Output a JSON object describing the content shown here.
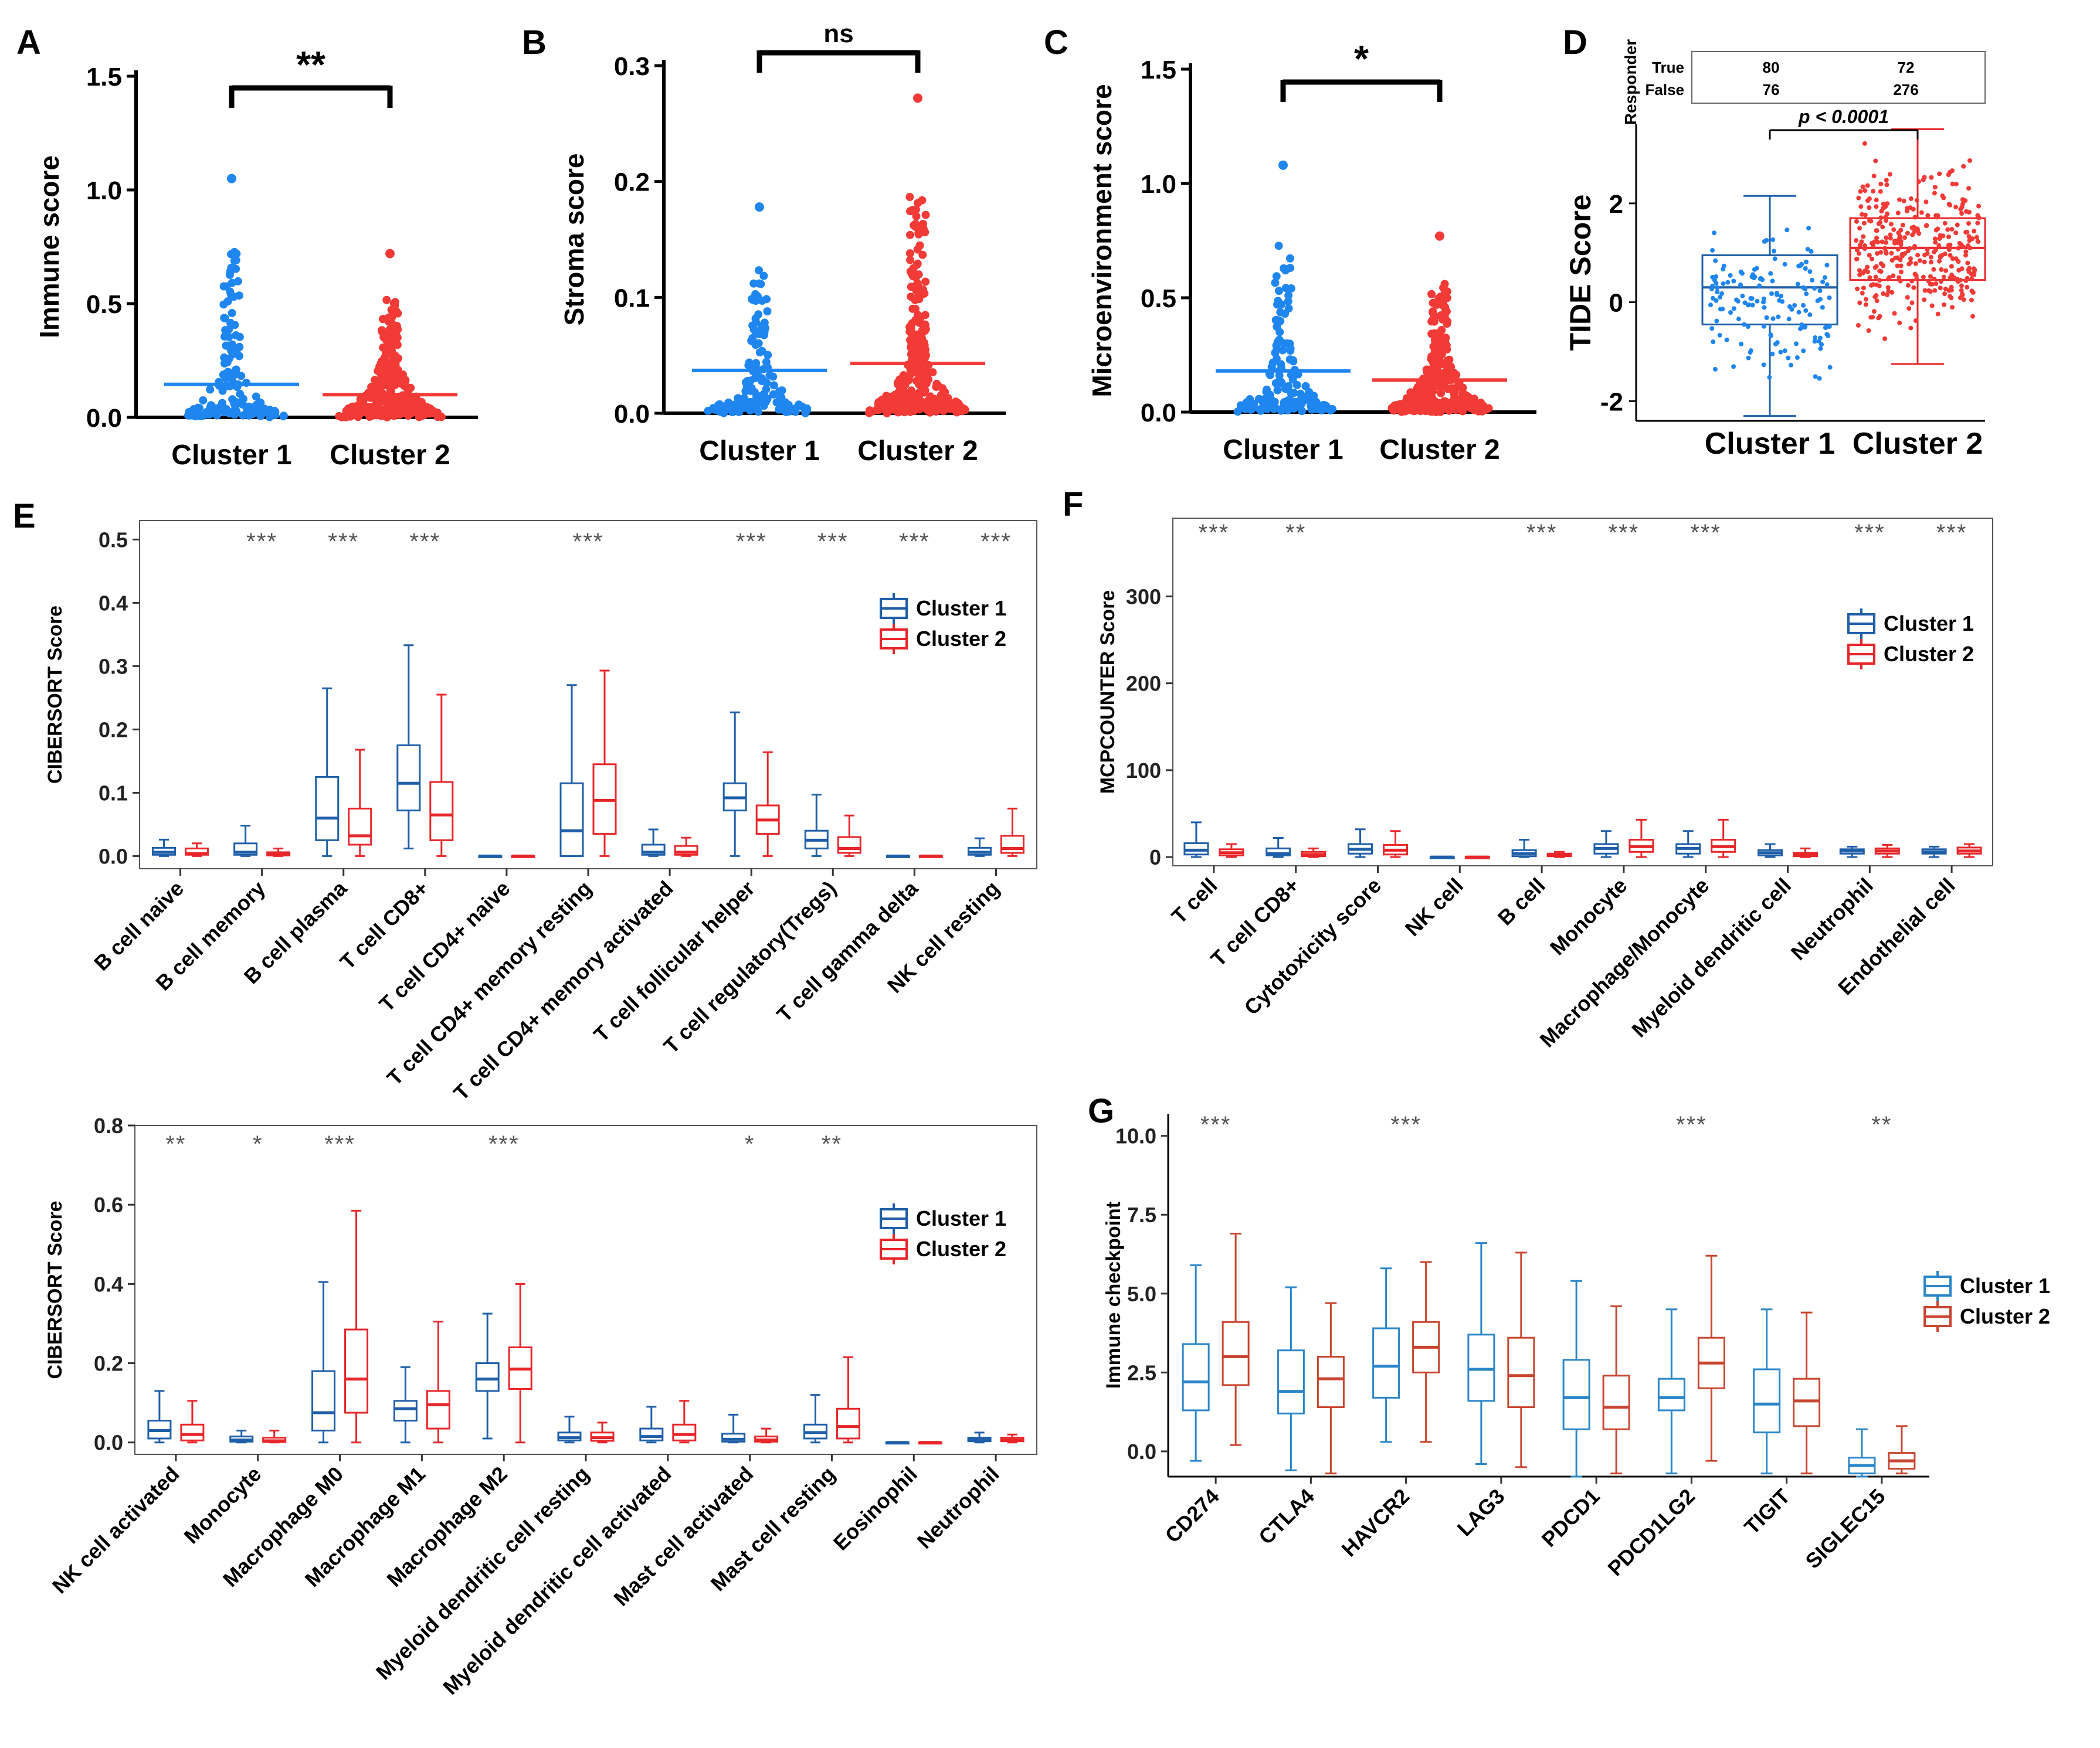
{
  "colors": {
    "c1": "#1f86f0",
    "c2": "#f23a36",
    "c1box": "#1f5fa8",
    "c2box": "#e8262a",
    "c1g": "#2a86c8",
    "c2g": "#c8452f",
    "ink": "#000000",
    "sig": "#555555"
  },
  "chart_data": [
    {
      "panel": "A",
      "type": "scatter",
      "ylabel": "Immune score",
      "ylim": [
        0,
        1.5
      ],
      "yticks": [
        "0.0",
        "0.5",
        "1.0",
        "1.5"
      ],
      "categories": [
        "Cluster 1",
        "Cluster 2"
      ],
      "means": [
        0.145,
        0.1
      ],
      "max": [
        1.05,
        0.72
      ],
      "significance": "**"
    },
    {
      "panel": "B",
      "type": "scatter",
      "ylabel": "Stroma score",
      "ylim": [
        0,
        0.3
      ],
      "yticks": [
        "0.0",
        "0.1",
        "0.2",
        "0.3"
      ],
      "categories": [
        "Cluster 1",
        "Cluster 2"
      ],
      "means": [
        0.037,
        0.043
      ],
      "max": [
        0.178,
        0.272
      ],
      "significance": "ns"
    },
    {
      "panel": "C",
      "type": "scatter",
      "ylabel": "Microenvironment score",
      "ylim": [
        0,
        1.5
      ],
      "yticks": [
        "0.0",
        "0.5",
        "1.0",
        "1.5"
      ],
      "categories": [
        "Cluster 1",
        "Cluster 2"
      ],
      "means": [
        0.18,
        0.14
      ],
      "max": [
        1.08,
        0.77
      ],
      "significance": "*"
    },
    {
      "panel": "D",
      "type": "box",
      "ylabel": "TIDE Score",
      "ylim": [
        -2.4,
        3.6
      ],
      "yticks": [
        "-2",
        "0",
        "2"
      ],
      "categories": [
        "Cluster 1",
        "Cluster 2"
      ],
      "boxes": [
        {
          "min": -2.3,
          "q1": -0.45,
          "median": 0.3,
          "q3": 0.95,
          "max": 2.15
        },
        {
          "min": -1.25,
          "q1": 0.45,
          "median": 1.1,
          "q3": 1.7,
          "max": 3.5
        }
      ],
      "pvalue": "p < 0.0001",
      "responder_table": {
        "title": "Responder",
        "rows": [
          {
            "label": "True",
            "values": [
              "80",
              "72"
            ]
          },
          {
            "label": "False",
            "values": [
              "76",
              "276"
            ]
          }
        ]
      }
    },
    {
      "panel": "E",
      "type": "box",
      "ylabel": "CIBERSORT Score",
      "ylim": [
        -0.02,
        0.53
      ],
      "yticks": [
        "0.0",
        "0.1",
        "0.2",
        "0.3",
        "0.4",
        "0.5"
      ],
      "legend": [
        "Cluster 1",
        "Cluster 2"
      ],
      "categories": [
        "B cell naive",
        "B cell memory",
        "B cell plasma",
        "T cell CD8+",
        "T cell CD4+ naive",
        "T cell CD4+ memory resting",
        "T cell CD4+ memory activated",
        "T cell follicular helper",
        "T cell regulatory(Tregs)",
        "T cell gamma delta",
        "NK cell resting"
      ],
      "significance": [
        "",
        "***",
        "***",
        "***",
        "",
        "***",
        "",
        "***",
        "***",
        "***",
        "***"
      ],
      "cluster1": [
        [
          0,
          0.002,
          0.006,
          0.013,
          0.026
        ],
        [
          0,
          0.002,
          0.006,
          0.02,
          0.048
        ],
        [
          0,
          0.025,
          0.06,
          0.125,
          0.265
        ],
        [
          0.012,
          0.072,
          0.115,
          0.175,
          0.333
        ],
        [
          0,
          0,
          0,
          0,
          0
        ],
        [
          0,
          0,
          0.04,
          0.115,
          0.27
        ],
        [
          0,
          0.002,
          0.006,
          0.018,
          0.042
        ],
        [
          0,
          0.072,
          0.092,
          0.115,
          0.227
        ],
        [
          0,
          0.012,
          0.025,
          0.04,
          0.097
        ],
        [
          0,
          0,
          0,
          0,
          0
        ],
        [
          0,
          0.002,
          0.006,
          0.013,
          0.028
        ]
      ],
      "cluster2": [
        [
          0,
          0.002,
          0.004,
          0.012,
          0.02
        ],
        [
          0,
          0.001,
          0.003,
          0.006,
          0.012
        ],
        [
          0,
          0.018,
          0.032,
          0.075,
          0.168
        ],
        [
          0,
          0.025,
          0.065,
          0.117,
          0.255
        ],
        [
          0,
          0,
          0,
          0,
          0
        ],
        [
          0,
          0.035,
          0.088,
          0.145,
          0.293
        ],
        [
          0,
          0.002,
          0.006,
          0.016,
          0.029
        ],
        [
          0,
          0.035,
          0.057,
          0.08,
          0.164
        ],
        [
          0,
          0.005,
          0.012,
          0.03,
          0.064
        ],
        [
          0,
          0,
          0,
          0,
          0
        ],
        [
          0,
          0.005,
          0.012,
          0.032,
          0.075
        ]
      ]
    },
    {
      "panel": "E2",
      "type": "box",
      "ylabel": "CIBERSORT Score",
      "ylim": [
        -0.03,
        0.8
      ],
      "yticks": [
        "0.0",
        "0.2",
        "0.4",
        "0.6",
        "0.8"
      ],
      "legend": [
        "Cluster 1",
        "Cluster 2"
      ],
      "categories": [
        "NK cell activated",
        "Monocyte",
        "Macrophage M0",
        "Macrophage M1",
        "Macrophage M2",
        "Myeloid dendritic cell resting",
        "Myeloid dendritic cell activated",
        "Mast cell activated",
        "Mast cell resting",
        "Eosinophil",
        "Neutrophil"
      ],
      "significance": [
        "**",
        "*",
        "***",
        "",
        "***",
        "",
        "",
        "*",
        "**",
        "",
        ""
      ],
      "cluster1": [
        [
          0,
          0.01,
          0.03,
          0.055,
          0.13
        ],
        [
          0,
          0.002,
          0.006,
          0.015,
          0.03
        ],
        [
          0,
          0.03,
          0.075,
          0.18,
          0.405
        ],
        [
          0,
          0.055,
          0.085,
          0.105,
          0.19
        ],
        [
          0.01,
          0.13,
          0.16,
          0.2,
          0.325
        ],
        [
          0,
          0.005,
          0.012,
          0.025,
          0.065
        ],
        [
          0,
          0.005,
          0.015,
          0.035,
          0.09
        ],
        [
          0,
          0.002,
          0.008,
          0.022,
          0.07
        ],
        [
          0,
          0.01,
          0.025,
          0.045,
          0.12
        ],
        [
          0,
          0,
          0,
          0,
          0
        ],
        [
          0,
          0.003,
          0.008,
          0.012,
          0.025
        ]
      ],
      "cluster2": [
        [
          0,
          0.005,
          0.02,
          0.045,
          0.105
        ],
        [
          0,
          0.001,
          0.004,
          0.012,
          0.03
        ],
        [
          0,
          0.075,
          0.16,
          0.285,
          0.585
        ],
        [
          0,
          0.035,
          0.095,
          0.13,
          0.305
        ],
        [
          0,
          0.135,
          0.185,
          0.24,
          0.4
        ],
        [
          0,
          0.004,
          0.012,
          0.025,
          0.05
        ],
        [
          0,
          0.005,
          0.02,
          0.045,
          0.105
        ],
        [
          0,
          0.002,
          0.006,
          0.015,
          0.035
        ],
        [
          0,
          0.01,
          0.04,
          0.085,
          0.215
        ],
        [
          0,
          0,
          0,
          0,
          0
        ],
        [
          0,
          0.003,
          0.006,
          0.012,
          0.02
        ]
      ]
    },
    {
      "panel": "F",
      "type": "box",
      "ylabel": "MCPCOUNTER Score",
      "ylim": [
        -10,
        390
      ],
      "yticks": [
        "0",
        "100",
        "200",
        "300"
      ],
      "legend": [
        "Cluster 1",
        "Cluster 2"
      ],
      "categories": [
        "T cell",
        "T cell CD8+",
        "Cytotoxicity score",
        "NK cell",
        "B cell",
        "Monocyte",
        "Macrophage/Monocyte",
        "Myeloid dendritic cell",
        "Neutrophil",
        "Endothelial cell"
      ],
      "significance": [
        "***",
        "**",
        "",
        "",
        "***",
        "***",
        "***",
        "",
        "***",
        "***"
      ],
      "cluster1": [
        [
          0,
          3,
          8,
          16,
          40
        ],
        [
          0,
          2,
          4,
          10,
          22
        ],
        [
          0,
          4,
          9,
          15,
          32
        ],
        [
          0,
          0,
          0,
          0,
          0
        ],
        [
          0,
          1,
          4,
          8,
          20
        ],
        [
          0,
          4,
          10,
          15,
          30
        ],
        [
          0,
          4,
          10,
          15,
          30
        ],
        [
          0,
          2,
          5,
          8,
          15
        ],
        [
          0,
          4,
          7,
          9,
          12
        ],
        [
          0,
          4,
          6,
          9,
          12
        ]
      ],
      "cluster2": [
        [
          0,
          2,
          5,
          9,
          15
        ],
        [
          0,
          1,
          3,
          6,
          10
        ],
        [
          0,
          3,
          8,
          14,
          30
        ],
        [
          0,
          0,
          0,
          0,
          0
        ],
        [
          0,
          1,
          2,
          4,
          6
        ],
        [
          0,
          6,
          12,
          20,
          43
        ],
        [
          0,
          6,
          12,
          20,
          43
        ],
        [
          0,
          1,
          3,
          5,
          10
        ],
        [
          0,
          4,
          7,
          10,
          14
        ],
        [
          0,
          4,
          7,
          11,
          15
        ]
      ]
    },
    {
      "panel": "G",
      "type": "box",
      "ylabel": "Immune checkpoint",
      "ylim": [
        -0.8,
        10.7
      ],
      "yticks": [
        "0.0",
        "2.5",
        "5.0",
        "7.5",
        "10.0"
      ],
      "legend": [
        "Cluster 1",
        "Cluster 2"
      ],
      "categories": [
        "CD274",
        "CTLA4",
        "HAVCR2",
        "LAG3",
        "PDCD1",
        "PDCD1LG2",
        "TIGIT",
        "SIGLEC15"
      ],
      "significance": [
        "***",
        "",
        "***",
        "",
        "",
        "***",
        "",
        "**"
      ],
      "cluster1": [
        [
          -0.3,
          1.3,
          2.2,
          3.4,
          5.9
        ],
        [
          -0.6,
          1.2,
          1.9,
          3.2,
          5.2
        ],
        [
          0.3,
          1.7,
          2.7,
          3.9,
          5.8
        ],
        [
          -0.4,
          1.6,
          2.6,
          3.7,
          6.6
        ],
        [
          -0.8,
          0.7,
          1.7,
          2.9,
          5.4
        ],
        [
          -0.7,
          1.3,
          1.7,
          2.3,
          4.5
        ],
        [
          -0.7,
          0.6,
          1.5,
          2.6,
          4.5
        ],
        [
          -0.8,
          -0.7,
          -0.45,
          -0.2,
          0.7
        ]
      ],
      "cluster2": [
        [
          0.2,
          2.1,
          3.0,
          4.1,
          6.9
        ],
        [
          -0.7,
          1.4,
          2.3,
          3.0,
          4.7
        ],
        [
          0.3,
          2.5,
          3.3,
          4.1,
          6.0
        ],
        [
          -0.5,
          1.4,
          2.4,
          3.6,
          6.3
        ],
        [
          -0.7,
          0.7,
          1.4,
          2.4,
          4.6
        ],
        [
          -0.3,
          2.0,
          2.8,
          3.6,
          6.2
        ],
        [
          -0.7,
          0.8,
          1.6,
          2.3,
          4.4
        ],
        [
          -0.7,
          -0.55,
          -0.3,
          -0.05,
          0.8
        ]
      ]
    }
  ]
}
